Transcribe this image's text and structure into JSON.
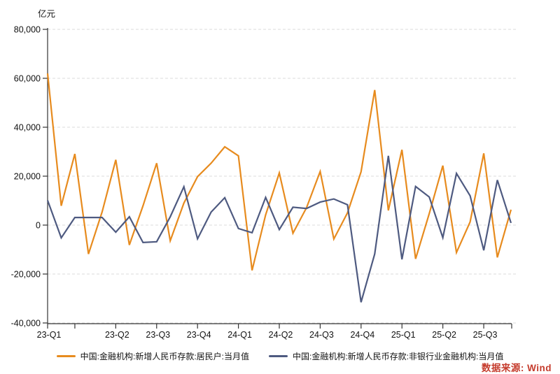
{
  "page": {
    "background": "#ffffff"
  },
  "chart_data": {
    "type": "line",
    "title": "",
    "unit_label": "亿元",
    "grid": "horizontal-dashed",
    "legend_position": "bottom",
    "ylim": [
      -40000,
      80000
    ],
    "y_ticks": [
      {
        "label": "80,000",
        "value": 80000
      },
      {
        "label": "60,000",
        "value": 60000
      },
      {
        "label": "40,000",
        "value": 40000
      },
      {
        "label": "20,000",
        "value": 20000
      },
      {
        "label": "0",
        "value": 0
      },
      {
        "label": "-20,000",
        "value": -20000
      },
      {
        "label": "-40,000",
        "value": -40000
      }
    ],
    "x_tick_labels": [
      {
        "label": "23-Q1",
        "month_index": 0
      },
      {
        "label": "23-Q2",
        "month_index": 5
      },
      {
        "label": "23-Q3",
        "month_index": 8
      },
      {
        "label": "23-Q4",
        "month_index": 11
      },
      {
        "label": "24-Q1",
        "month_index": 14
      },
      {
        "label": "24-Q2",
        "month_index": 17
      },
      {
        "label": "24-Q3",
        "month_index": 20
      },
      {
        "label": "24-Q4",
        "month_index": 23
      },
      {
        "label": "25-Q1",
        "month_index": 26
      },
      {
        "label": "25-Q2",
        "month_index": 29
      },
      {
        "label": "25-Q3",
        "month_index": 32
      }
    ],
    "x_tick_month_indices": [
      0,
      2,
      5,
      8,
      11,
      14,
      17,
      20,
      23,
      26,
      29,
      32
    ],
    "x": [
      "2023-01",
      "2023-02",
      "2023-03",
      "2023-04",
      "2023-05",
      "2023-06",
      "2023-07",
      "2023-08",
      "2023-09",
      "2023-10",
      "2023-11",
      "2023-12",
      "2024-01",
      "2024-02",
      "2024-03",
      "2024-04",
      "2024-05",
      "2024-06",
      "2024-07",
      "2024-08",
      "2024-09",
      "2024-10",
      "2024-11",
      "2024-12",
      "2025-01",
      "2025-02",
      "2025-03",
      "2025-04",
      "2025-05",
      "2025-06",
      "2025-07",
      "2025-08",
      "2025-09",
      "2025-10",
      "2025-11"
    ],
    "series": [
      {
        "name": "中国:金融机构:新增人民币存款:居民户:当月值",
        "color": "#E78B1E",
        "values": [
          62000,
          7900,
          29100,
          -11800,
          5400,
          26700,
          -8100,
          7900,
          25300,
          -6400,
          9000,
          19800,
          25300,
          32000,
          28300,
          -18500,
          4200,
          21300,
          -3300,
          7100,
          21900,
          -5700,
          5000,
          21800,
          55200,
          6000,
          30800,
          -13800,
          4700,
          24300,
          -11200,
          1300,
          29300,
          -13200,
          6300
        ]
      },
      {
        "name": "中国:金融机构:新增人民币存款:非银行业金融机构:当月值",
        "color": "#4E5A80",
        "values": [
          10100,
          -5200,
          3100,
          3100,
          3100,
          -2900,
          3400,
          -7100,
          -6800,
          3400,
          15700,
          -5600,
          5300,
          11200,
          -1400,
          -3100,
          11300,
          -1800,
          7300,
          6800,
          9400,
          10700,
          8300,
          -31500,
          -11800,
          28300,
          -14000,
          15800,
          11500,
          -5100,
          21100,
          12000,
          -10300,
          18400,
          900
        ]
      }
    ],
    "colors": {
      "grid": "#DBDBDB",
      "axis": "#333333",
      "tick_text": "#111111"
    }
  },
  "footer": {
    "source_label": "数据来源: Wind",
    "source_color": "#C53B2C"
  }
}
